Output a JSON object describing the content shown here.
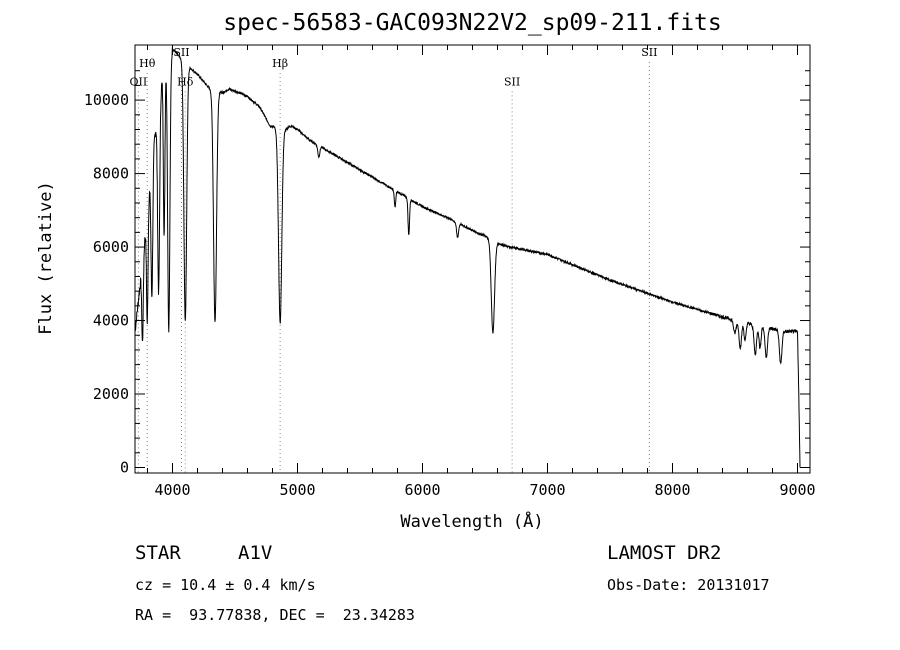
{
  "chart_data": {
    "type": "line",
    "title": "spec-56583-GAC093N22V2_sp09-211.fits",
    "xlabel": "Wavelength (Å)",
    "ylabel": "Flux (relative)",
    "xlim": [
      3700,
      9100
    ],
    "ylim": [
      -150,
      11500
    ],
    "xticks": [
      4000,
      5000,
      6000,
      7000,
      8000,
      9000
    ],
    "yticks": [
      0,
      2000,
      4000,
      6000,
      8000,
      10000
    ],
    "grid": false,
    "continuum": {
      "x": [
        3700,
        3760,
        3800,
        3850,
        3900,
        3950,
        4000,
        4050,
        4100,
        4200,
        4300,
        4400,
        4450,
        4500,
        4600,
        4700,
        4780,
        4900,
        4950,
        5000,
        5100,
        5200,
        5300,
        5500,
        5700,
        5800,
        5900,
        6000,
        6200,
        6400,
        6500,
        6600,
        6700,
        7000,
        7500,
        8000,
        8500,
        8900,
        9000,
        9010,
        9020
      ],
      "y": [
        3700,
        5600,
        7000,
        8800,
        10200,
        11200,
        11400,
        11200,
        11000,
        10700,
        10300,
        10200,
        10300,
        10250,
        10100,
        9800,
        9300,
        9200,
        9300,
        9200,
        8900,
        8700,
        8500,
        8100,
        7700,
        7500,
        7300,
        7100,
        6800,
        6450,
        6300,
        6100,
        6000,
        5800,
        5100,
        4500,
        4000,
        3700,
        3700,
        2000,
        0
      ]
    },
    "absorption_lines": [
      {
        "center": 3760,
        "depth": 2200,
        "width": 6
      },
      {
        "center": 3798,
        "depth": 3000,
        "width": 6
      },
      {
        "center": 3835,
        "depth": 3600,
        "width": 7
      },
      {
        "center": 3889,
        "depth": 5100,
        "width": 8
      },
      {
        "center": 3933,
        "depth": 4600,
        "width": 6
      },
      {
        "center": 3970,
        "depth": 7500,
        "width": 9
      },
      {
        "center": 4102,
        "depth": 7000,
        "width": 11
      },
      {
        "center": 4340,
        "depth": 6300,
        "width": 12
      },
      {
        "center": 4861,
        "depth": 5300,
        "width": 13
      },
      {
        "center": 5170,
        "depth": 300,
        "width": 8
      },
      {
        "center": 5780,
        "depth": 450,
        "width": 6
      },
      {
        "center": 5890,
        "depth": 1000,
        "width": 6
      },
      {
        "center": 6280,
        "depth": 400,
        "width": 8
      },
      {
        "center": 6563,
        "depth": 2500,
        "width": 13
      },
      {
        "center": 8498,
        "depth": 350,
        "width": 10
      },
      {
        "center": 8542,
        "depth": 700,
        "width": 10
      },
      {
        "center": 8580,
        "depth": 500,
        "width": 8
      },
      {
        "center": 8662,
        "depth": 800,
        "width": 10
      },
      {
        "center": 8700,
        "depth": 600,
        "width": 8
      },
      {
        "center": 8750,
        "depth": 800,
        "width": 10
      },
      {
        "center": 8865,
        "depth": 900,
        "width": 10
      }
    ],
    "line_markers": [
      {
        "label": "OII",
        "x": 3727,
        "label_y": 10400
      },
      {
        "label": "Hθ",
        "x": 3798,
        "label_y": 10900
      },
      {
        "label": "Hδ",
        "x": 4102,
        "label_y": 10400
      },
      {
        "label": "SII",
        "x": 4072,
        "label_y": 11200
      },
      {
        "label": "Hβ",
        "x": 4861,
        "label_y": 10900
      },
      {
        "label": "SII",
        "x": 6717,
        "label_y": 10400
      },
      {
        "label": "SII",
        "x": 7815,
        "label_y": 11200
      }
    ]
  },
  "info": {
    "object_class": "STAR",
    "subclass": "A1V",
    "survey": "LAMOST DR2",
    "cz": "cz = 10.4 ± 0.4 km/s",
    "obs_date": "Obs-Date: 20131017",
    "coords": "RA =  93.77838, DEC =  23.34283"
  }
}
